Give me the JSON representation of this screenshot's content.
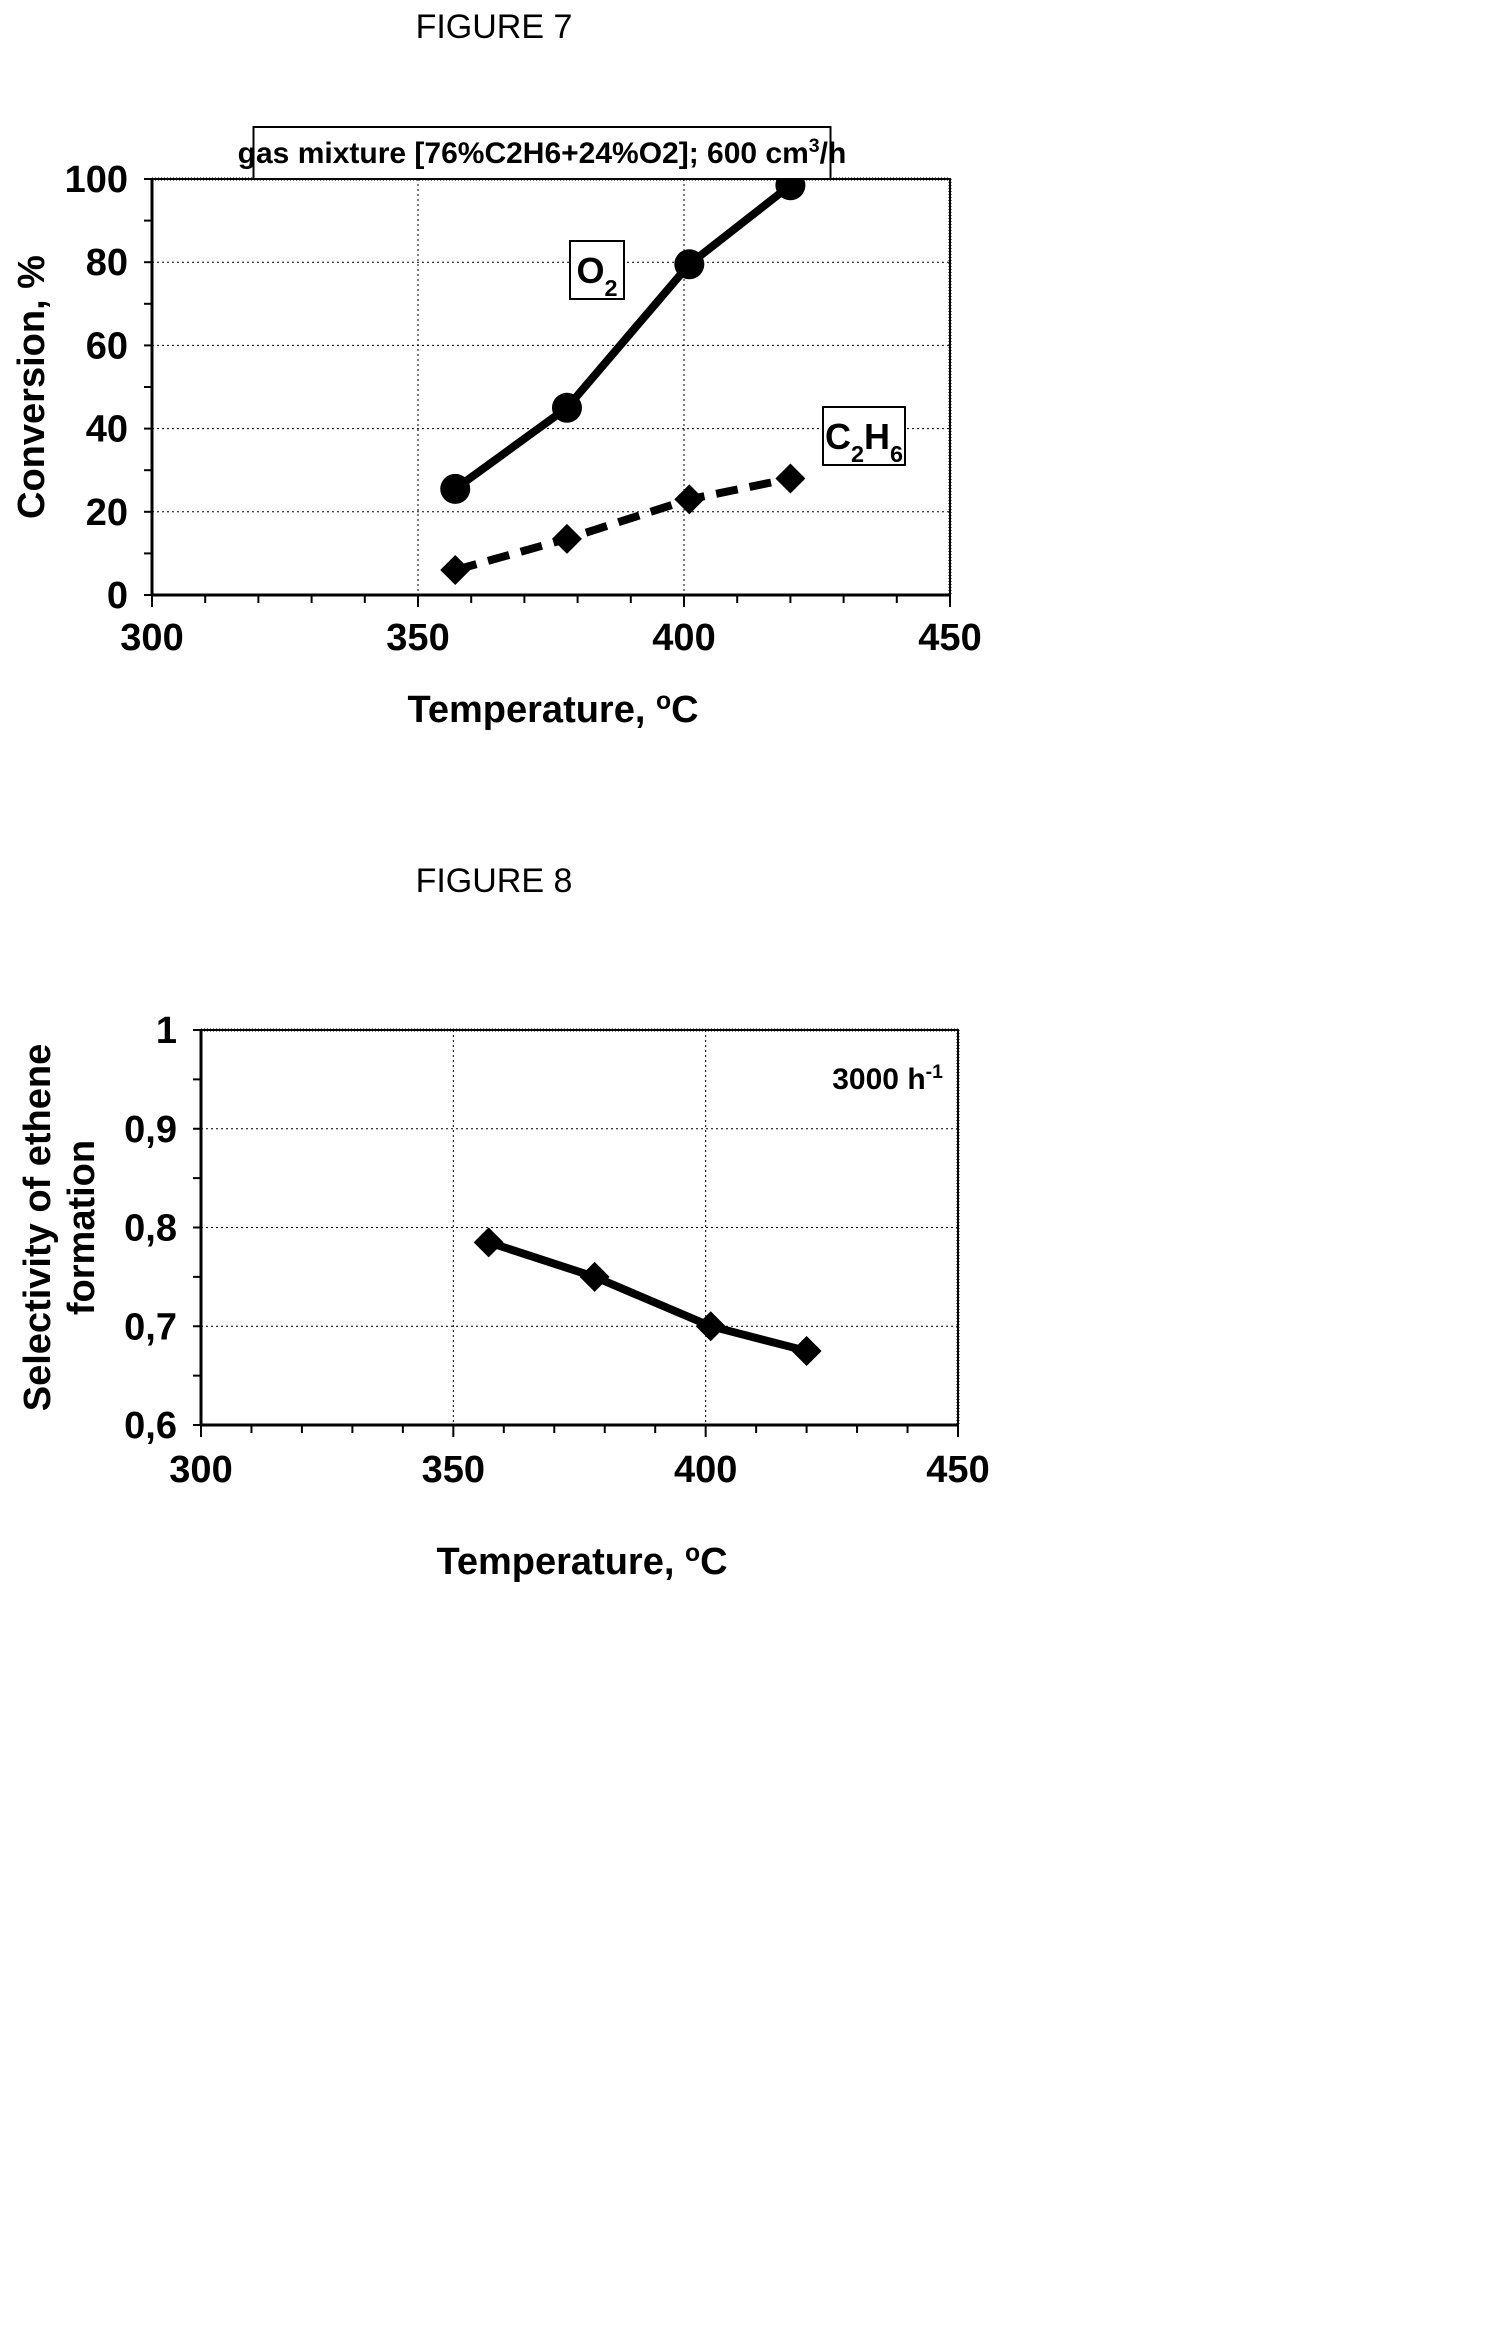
{
  "figures": [
    {
      "caption": "FIGURE 7"
    },
    {
      "caption": "FIGURE 8"
    }
  ],
  "chart_data": [
    {
      "type": "line",
      "annotation": "gas mixture [76%C2H6+24%O2]; 600 cm3/h",
      "xlabel": "Temperature, oC",
      "ylabel": "Conversion, %",
      "xlim": [
        300,
        450
      ],
      "ylim": [
        0,
        100
      ],
      "xticks": [
        300,
        350,
        400,
        450
      ],
      "yticks": [
        0,
        20,
        40,
        60,
        80,
        100
      ],
      "grid": true,
      "series": [
        {
          "name": "O2",
          "marker": "circle",
          "line": "solid",
          "x": [
            357,
            378,
            401,
            420
          ],
          "y": [
            25.5,
            45,
            79.5,
            98.5
          ]
        },
        {
          "name": "C2H6",
          "marker": "diamond",
          "line": "dashed",
          "x": [
            357,
            378,
            401,
            420
          ],
          "y": [
            6,
            13.5,
            23,
            28
          ]
        }
      ]
    },
    {
      "type": "line",
      "annotation": "3000 h-1",
      "xlabel": "Temperature, oC",
      "ylabel": "Selectivity of ethene formation",
      "xlim": [
        300,
        450
      ],
      "ylim": [
        0.6,
        1
      ],
      "xticks": [
        300,
        350,
        400,
        450
      ],
      "yticks": [
        "0,6",
        "0,7",
        "0,8",
        "0,9",
        "1"
      ],
      "grid": true,
      "series": [
        {
          "marker": "diamond",
          "line": "solid",
          "x": [
            357,
            378,
            401,
            420
          ],
          "y": [
            0.785,
            0.75,
            0.7,
            0.675
          ]
        }
      ]
    }
  ]
}
